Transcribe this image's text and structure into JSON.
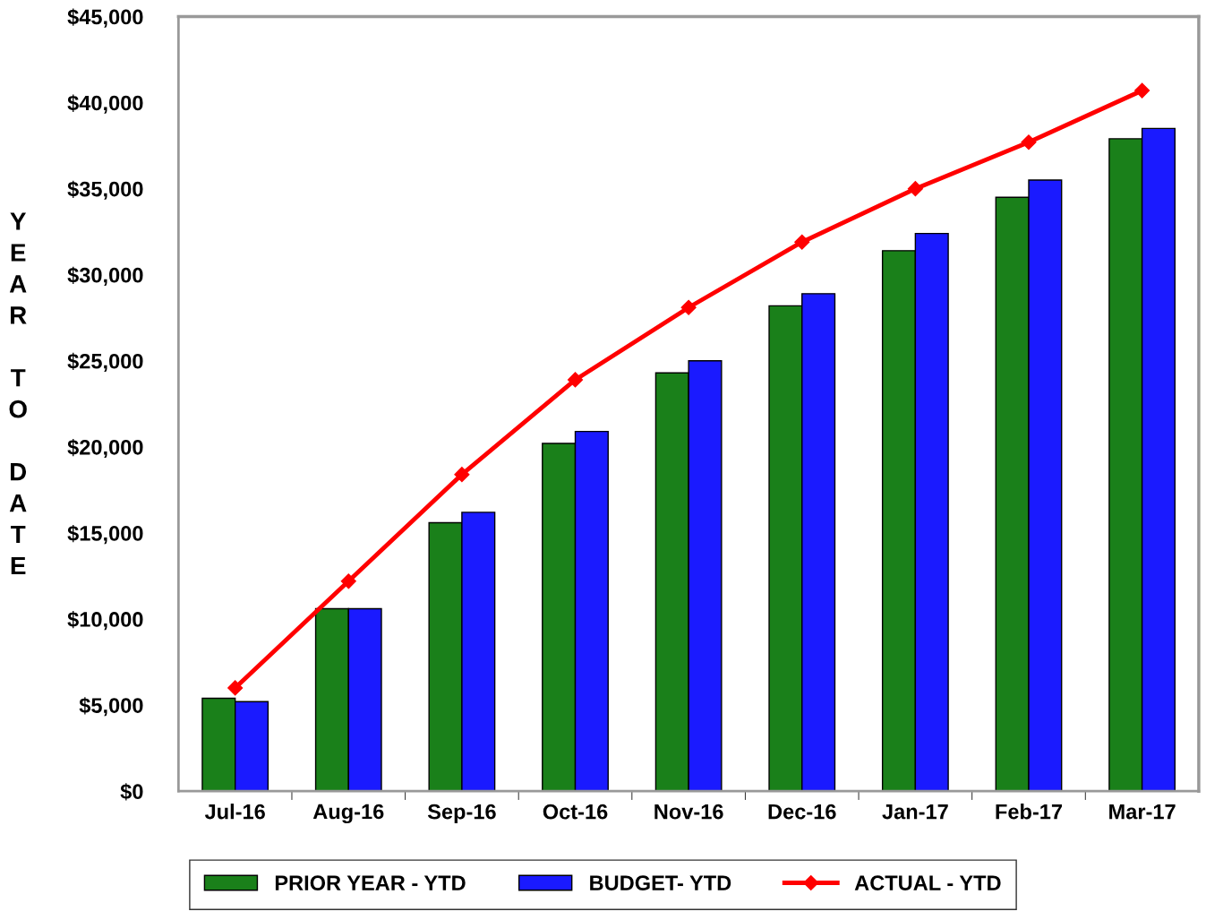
{
  "chart_data": {
    "type": "bar",
    "ylabel": "YEAR TO DATE",
    "categories": [
      "Jul-16",
      "Aug-16",
      "Sep-16",
      "Oct-16",
      "Nov-16",
      "Dec-16",
      "Jan-17",
      "Feb-17",
      "Mar-17"
    ],
    "series": [
      {
        "name": "PRIOR YEAR - YTD",
        "color": "#1a801a",
        "values": [
          5400,
          10600,
          15600,
          20200,
          24300,
          28200,
          31400,
          34500,
          37900
        ]
      },
      {
        "name": "BUDGET- YTD",
        "color": "#1a1aff",
        "values": [
          5200,
          10600,
          16200,
          20900,
          25000,
          28900,
          32400,
          35500,
          38500
        ]
      },
      {
        "name": "ACTUAL - YTD",
        "type": "line",
        "color": "#ff0000",
        "marker": "diamond",
        "values": [
          6000,
          12200,
          18400,
          23900,
          28100,
          31900,
          35000,
          37700,
          40700
        ]
      }
    ],
    "ylim": [
      0,
      45000
    ],
    "yticks": [
      {
        "value": 0,
        "label": "$0"
      },
      {
        "value": 5000,
        "label": "$5,000"
      },
      {
        "value": 10000,
        "label": "$10,000"
      },
      {
        "value": 15000,
        "label": "$15,000"
      },
      {
        "value": 20000,
        "label": "$20,000"
      },
      {
        "value": 25000,
        "label": "$25,000"
      },
      {
        "value": 30000,
        "label": "$30,000"
      },
      {
        "value": 35000,
        "label": "$35,000"
      },
      {
        "value": 40000,
        "label": "$40,000"
      },
      {
        "value": 45000,
        "label": "$45,000"
      }
    ],
    "grid": false,
    "legend": "bottom"
  }
}
